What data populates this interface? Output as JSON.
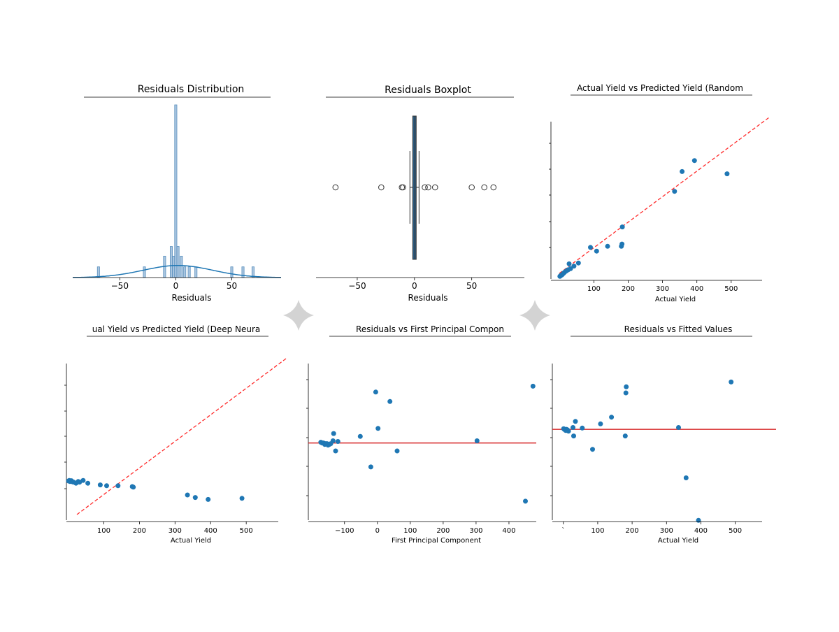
{
  "colors": {
    "point": "#1f77b4",
    "kde": "#1f77b4",
    "hist_fill": "#aac6e0",
    "hist_edge": "#5a8fbd",
    "box_fill": "#2e5f86",
    "diag": "#ff2a2a",
    "zero": "#d62728",
    "sparkle": "#d3d3d3"
  },
  "icons": [
    "sparkle-icon",
    "sparkle-icon"
  ],
  "chart_data": [
    {
      "type": "bar",
      "title": "Residuals Distribution",
      "xlabel": "Residuals",
      "xticks": [
        -50,
        0,
        50
      ],
      "xtick_labels": [
        "−50",
        "0",
        "50"
      ],
      "xlim": [
        -92,
        94
      ],
      "ylim": [
        0,
        1
      ],
      "bins": [
        {
          "x": -69,
          "h": 0.062
        },
        {
          "x": -28,
          "h": 0.062
        },
        {
          "x": -10,
          "h": 0.124
        },
        {
          "x": -4,
          "h": 0.18
        },
        {
          "x": -2,
          "h": 0.124
        },
        {
          "x": 0,
          "h": 1.0
        },
        {
          "x": 2,
          "h": 0.18
        },
        {
          "x": 5,
          "h": 0.124
        },
        {
          "x": 8,
          "h": 0.062
        },
        {
          "x": 12,
          "h": 0.062
        },
        {
          "x": 18,
          "h": 0.062
        },
        {
          "x": 50,
          "h": 0.062
        },
        {
          "x": 60,
          "h": 0.062
        },
        {
          "x": 69,
          "h": 0.062
        }
      ],
      "kde": {
        "mean": 2,
        "sd": 31,
        "peak": 0.07
      }
    },
    {
      "type": "box",
      "title": "Residuals Boxplot",
      "xlabel": "Residuals",
      "xticks": [
        -50,
        0,
        50
      ],
      "xtick_labels": [
        "−50",
        "0",
        "50"
      ],
      "xlim": [
        -86,
        96
      ],
      "box": {
        "q1": -1.5,
        "median": 0.3,
        "q3": 1.5,
        "whisker_low": -4,
        "whisker_high": 4
      },
      "outliers": [
        -69,
        -29,
        -11,
        -10,
        9,
        12,
        18,
        50,
        61,
        69
      ]
    },
    {
      "type": "scatter",
      "title": "Actual Yield vs Predicted Yield (Random",
      "xlabel": "Actual Yield",
      "xticks": [
        100,
        200,
        300,
        400,
        500
      ],
      "xtick_labels": [
        "100",
        "200",
        "300",
        "400",
        "500"
      ],
      "xlim": [
        -25,
        590
      ],
      "ylim": [
        -15,
        720
      ],
      "diagonal": true,
      "points": [
        [
          1,
          3
        ],
        [
          3,
          6
        ],
        [
          5,
          8
        ],
        [
          7,
          10
        ],
        [
          9,
          13
        ],
        [
          12,
          18
        ],
        [
          15,
          22
        ],
        [
          20,
          28
        ],
        [
          25,
          33
        ],
        [
          28,
          60
        ],
        [
          32,
          38
        ],
        [
          42,
          50
        ],
        [
          55,
          64
        ],
        [
          90,
          135
        ],
        [
          108,
          118
        ],
        [
          140,
          140
        ],
        [
          180,
          140
        ],
        [
          182,
          150
        ],
        [
          183,
          228
        ],
        [
          335,
          390
        ],
        [
          357,
          480
        ],
        [
          393,
          530
        ],
        [
          488,
          470
        ]
      ]
    },
    {
      "type": "scatter",
      "title": "ual Yield vs Predicted Yield (Deep Neura",
      "xlabel": "Actual Yield",
      "xticks": [
        100,
        200,
        300,
        400,
        500
      ],
      "xtick_labels": [
        "100",
        "200",
        "300",
        "400",
        "500"
      ],
      "xlim": [
        -5,
        590
      ],
      "ylim": [
        -15,
        560
      ],
      "diagonal": true,
      "points": [
        [
          1,
          130
        ],
        [
          3,
          132
        ],
        [
          5,
          128
        ],
        [
          7,
          129
        ],
        [
          9,
          131
        ],
        [
          12,
          127
        ],
        [
          15,
          126
        ],
        [
          22,
          122
        ],
        [
          28,
          128
        ],
        [
          32,
          126
        ],
        [
          42,
          132
        ],
        [
          55,
          122
        ],
        [
          90,
          116
        ],
        [
          108,
          113
        ],
        [
          140,
          113
        ],
        [
          180,
          110
        ],
        [
          183,
          108
        ],
        [
          335,
          80
        ],
        [
          357,
          71
        ],
        [
          393,
          64
        ],
        [
          488,
          68
        ]
      ]
    },
    {
      "type": "scatter",
      "title": "Residuals vs First Principal Compon",
      "xlabel": "First Principal Component",
      "xticks": [
        -100,
        0,
        100,
        200,
        300,
        400
      ],
      "xtick_labels": [
        "−100",
        "0",
        "100",
        "200",
        "300",
        "400"
      ],
      "xlim": [
        -210,
        483
      ],
      "ylim": [
        -108,
        113
      ],
      "zero_line": true,
      "points": [
        [
          -172,
          1
        ],
        [
          -168,
          0
        ],
        [
          -164,
          0
        ],
        [
          -160,
          -2
        ],
        [
          -157,
          -1
        ],
        [
          -153,
          -1
        ],
        [
          -150,
          -3
        ],
        [
          -146,
          -2
        ],
        [
          -142,
          -1
        ],
        [
          -135,
          3
        ],
        [
          -133,
          13
        ],
        [
          -127,
          -11
        ],
        [
          -120,
          2
        ],
        [
          -52,
          9
        ],
        [
          -20,
          -33
        ],
        [
          -5,
          70
        ],
        [
          2,
          20
        ],
        [
          38,
          57
        ],
        [
          60,
          -11
        ],
        [
          303,
          3
        ],
        [
          450,
          -80
        ],
        [
          473,
          78
        ]
      ]
    },
    {
      "type": "scatter",
      "title": "Residuals vs Fitted Values",
      "xlabel": "Actual Yield",
      "xticks": [
        0,
        100,
        200,
        300,
        400,
        500
      ],
      "xtick_labels": [
        "`",
        "100",
        "200",
        "300",
        "400",
        "500"
      ],
      "xlim": [
        -32,
        578
      ],
      "ylim": [
        -152,
        113
      ],
      "zero_line": true,
      "points": [
        [
          1,
          1
        ],
        [
          3,
          0
        ],
        [
          5,
          -1
        ],
        [
          7,
          -2
        ],
        [
          9,
          0
        ],
        [
          12,
          -1
        ],
        [
          15,
          -3
        ],
        [
          28,
          3
        ],
        [
          30,
          -11
        ],
        [
          35,
          13
        ],
        [
          55,
          2
        ],
        [
          85,
          -33
        ],
        [
          108,
          9
        ],
        [
          140,
          20
        ],
        [
          180,
          -11
        ],
        [
          182,
          60
        ],
        [
          183,
          70
        ],
        [
          335,
          3
        ],
        [
          357,
          -80
        ],
        [
          393,
          -150
        ],
        [
          488,
          78
        ]
      ]
    }
  ]
}
